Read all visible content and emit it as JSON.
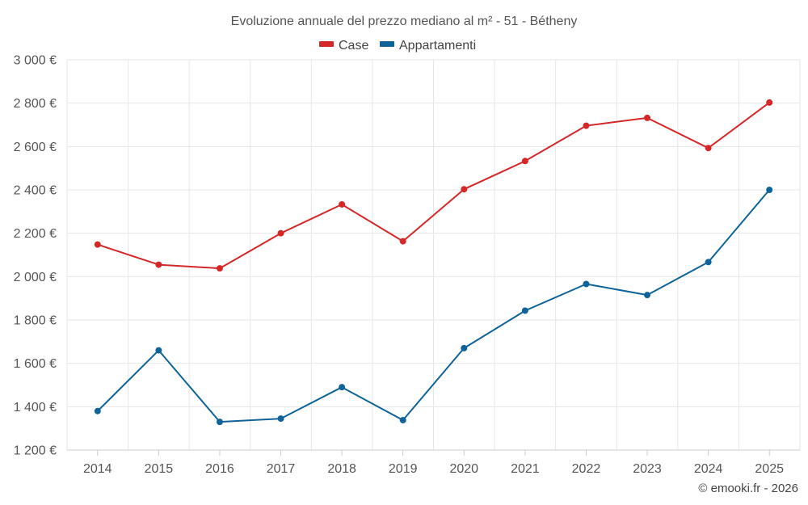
{
  "chart_data": {
    "type": "line",
    "title": "Evoluzione annuale del prezzo mediano al m² - 51 - Bétheny",
    "categories": [
      "2014",
      "2015",
      "2016",
      "2017",
      "2018",
      "2019",
      "2020",
      "2021",
      "2022",
      "2023",
      "2024",
      "2025"
    ],
    "series": [
      {
        "name": "Case",
        "color": "#d62728",
        "values": [
          2148,
          2055,
          2038,
          2200,
          2333,
          2163,
          2403,
          2533,
          2696,
          2732,
          2593,
          2803
        ]
      },
      {
        "name": "Appartamenti",
        "color": "#0e6399",
        "values": [
          1380,
          1660,
          1330,
          1345,
          1490,
          1338,
          1670,
          1843,
          1966,
          1915,
          2067,
          2400
        ]
      }
    ],
    "ylim": [
      1200,
      3000
    ],
    "yticks": [
      1200,
      1400,
      1600,
      1800,
      2000,
      2200,
      2400,
      2600,
      2800,
      3000
    ],
    "ytick_labels": [
      "1 200 €",
      "1 400 €",
      "1 600 €",
      "1 800 €",
      "2 000 €",
      "2 200 €",
      "2 400 €",
      "2 600 €",
      "2 800 €",
      "3 000 €"
    ],
    "xlabel": "",
    "ylabel": "",
    "legend_position": "top-center",
    "grid": true
  },
  "credit": "© emooki.fr - 2026"
}
